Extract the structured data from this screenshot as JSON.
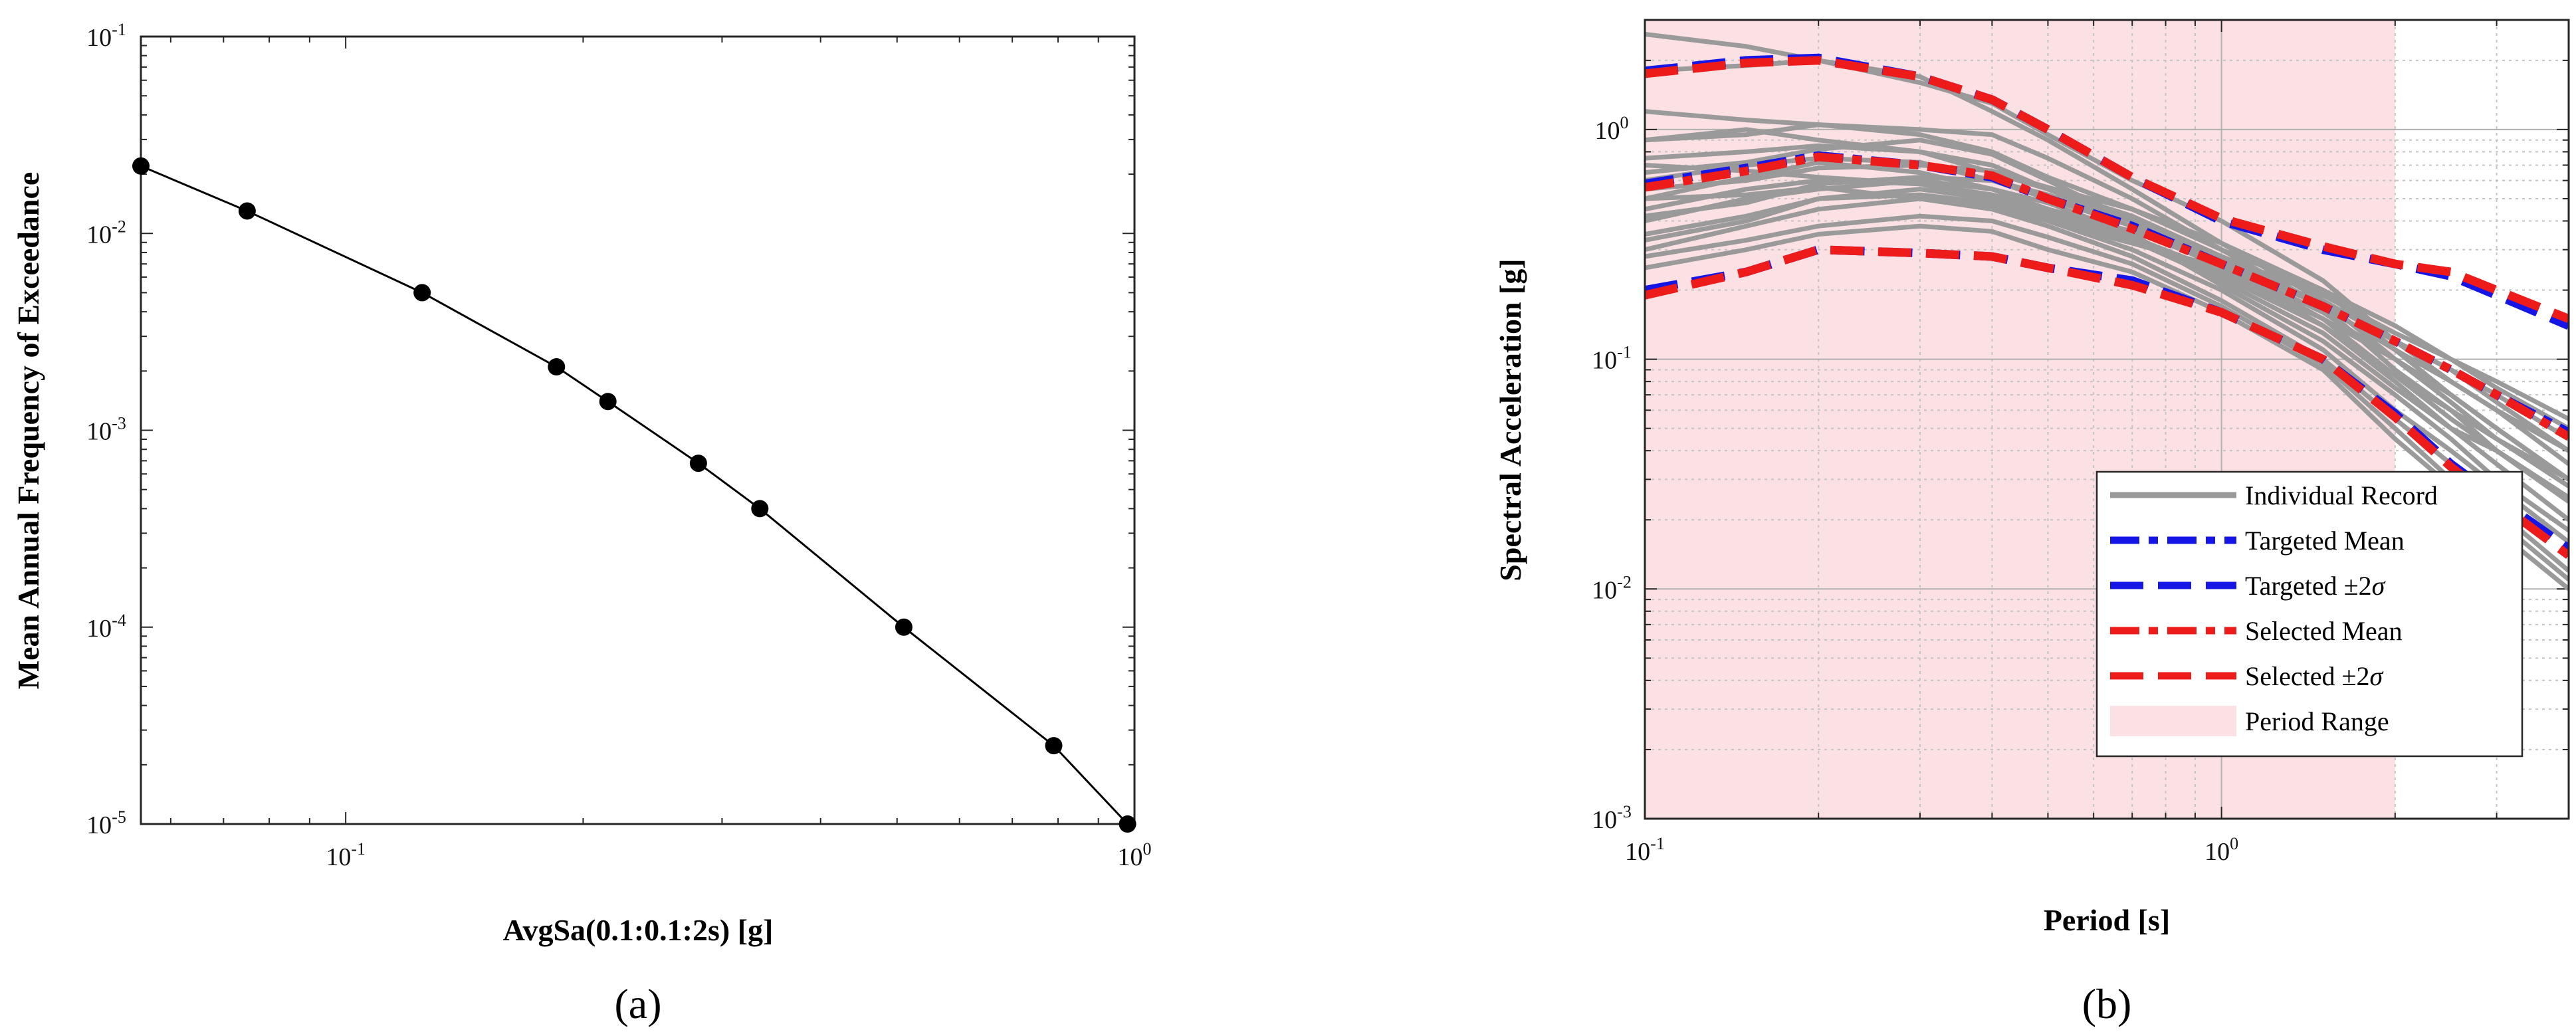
{
  "panel_labels": [
    "(a)",
    "(b)"
  ],
  "colors": {
    "records": "#9a9a9a",
    "targeted": "#1515e6",
    "selected": "#ee1b1b",
    "period_range": "#fbe1e3",
    "hazard": "#000000"
  },
  "chart_data": [
    {
      "type": "line",
      "panel": "(a)",
      "title": "",
      "xlabel": "AvgSa(0.1:0.1:2s) [g]",
      "ylabel": "Mean Annual Frequency of Exceedance",
      "xscale": "log",
      "yscale": "log",
      "xlim": [
        0.055,
        1.0
      ],
      "ylim": [
        1e-05,
        0.1
      ],
      "x_ticks": [
        {
          "base": "10",
          "exp": "-1",
          "value": 0.1
        },
        {
          "base": "10",
          "exp": "0",
          "value": 1
        }
      ],
      "y_ticks": [
        {
          "base": "10",
          "exp": "-5",
          "value": 1e-05
        },
        {
          "base": "10",
          "exp": "-4",
          "value": 0.0001
        },
        {
          "base": "10",
          "exp": "-3",
          "value": 0.001
        },
        {
          "base": "10",
          "exp": "-2",
          "value": 0.01
        },
        {
          "base": "10",
          "exp": "-1",
          "value": 0.1
        }
      ],
      "grid": false,
      "series": [
        {
          "name": "hazard curve",
          "x": [
            0.055,
            0.075,
            0.125,
            0.185,
            0.215,
            0.28,
            0.335,
            0.51,
            0.79,
            0.98
          ],
          "y": [
            0.022,
            0.013,
            0.005,
            0.0021,
            0.0014,
            0.00068,
            0.0004,
            0.0001,
            2.5e-05,
            1e-05
          ]
        }
      ]
    },
    {
      "type": "line",
      "panel": "(b)",
      "title": "",
      "xlabel": "Period [s]",
      "ylabel": "Spectral Acceleration [g]",
      "xscale": "log",
      "yscale": "log",
      "xlim": [
        0.1,
        4.0
      ],
      "ylim": [
        0.001,
        3.0
      ],
      "x_ticks": [
        {
          "base": "10",
          "exp": "-1",
          "value": 0.1
        },
        {
          "base": "10",
          "exp": "0",
          "value": 1
        }
      ],
      "y_ticks": [
        {
          "base": "10",
          "exp": "-3",
          "value": 0.001
        },
        {
          "base": "10",
          "exp": "-2",
          "value": 0.01
        },
        {
          "base": "10",
          "exp": "-1",
          "value": 0.1
        },
        {
          "base": "10",
          "exp": "0",
          "value": 1
        }
      ],
      "grid": true,
      "period_range": [
        0.1,
        2.0
      ],
      "period_grid": [
        0.1,
        0.2,
        0.3,
        0.4,
        0.5,
        0.6,
        0.7,
        0.8,
        0.9,
        1.0,
        2.0,
        3.0,
        4.0
      ],
      "record_periods": [
        0.1,
        0.15,
        0.2,
        0.3,
        0.4,
        0.5,
        0.7,
        1.0,
        1.5,
        2.0,
        2.5,
        3.0,
        4.0
      ],
      "records": [
        [
          2.6,
          2.3,
          2.0,
          1.6,
          1.3,
          0.95,
          0.6,
          0.4,
          0.22,
          0.12,
          0.08,
          0.06,
          0.035
        ],
        [
          1.8,
          1.9,
          2.0,
          1.7,
          1.2,
          0.9,
          0.55,
          0.32,
          0.2,
          0.11,
          0.07,
          0.05,
          0.03
        ],
        [
          1.2,
          1.1,
          1.05,
          1.0,
          0.95,
          0.75,
          0.5,
          0.3,
          0.17,
          0.09,
          0.06,
          0.04,
          0.025
        ],
        [
          0.9,
          0.95,
          1.05,
          0.95,
          0.8,
          0.62,
          0.45,
          0.3,
          0.2,
          0.12,
          0.09,
          0.07,
          0.045
        ],
        [
          0.75,
          0.8,
          0.85,
          0.8,
          0.7,
          0.55,
          0.42,
          0.28,
          0.19,
          0.13,
          0.1,
          0.08,
          0.055
        ],
        [
          0.6,
          0.7,
          0.75,
          0.72,
          0.6,
          0.5,
          0.38,
          0.25,
          0.14,
          0.08,
          0.05,
          0.035,
          0.02
        ],
        [
          0.5,
          0.62,
          0.72,
          0.65,
          0.55,
          0.45,
          0.34,
          0.24,
          0.15,
          0.1,
          0.07,
          0.05,
          0.03
        ],
        [
          0.45,
          0.55,
          0.6,
          0.58,
          0.5,
          0.42,
          0.33,
          0.22,
          0.13,
          0.075,
          0.05,
          0.04,
          0.025
        ],
        [
          0.4,
          0.5,
          0.55,
          0.6,
          0.55,
          0.48,
          0.35,
          0.21,
          0.12,
          0.07,
          0.045,
          0.03,
          0.018
        ],
        [
          0.35,
          0.42,
          0.5,
          0.52,
          0.48,
          0.4,
          0.3,
          0.2,
          0.11,
          0.06,
          0.04,
          0.028,
          0.016
        ],
        [
          0.3,
          0.38,
          0.45,
          0.5,
          0.45,
          0.38,
          0.28,
          0.18,
          0.1,
          0.055,
          0.035,
          0.022,
          0.012
        ],
        [
          0.28,
          0.33,
          0.38,
          0.42,
          0.4,
          0.34,
          0.26,
          0.17,
          0.095,
          0.05,
          0.03,
          0.02,
          0.011
        ],
        [
          0.25,
          0.3,
          0.35,
          0.38,
          0.36,
          0.3,
          0.24,
          0.16,
          0.09,
          0.045,
          0.028,
          0.018,
          0.01
        ],
        [
          0.9,
          1.0,
          0.9,
          0.8,
          0.65,
          0.55,
          0.4,
          0.26,
          0.16,
          0.1,
          0.07,
          0.05,
          0.03
        ],
        [
          0.65,
          0.72,
          0.82,
          0.9,
          0.78,
          0.6,
          0.4,
          0.26,
          0.15,
          0.085,
          0.055,
          0.04,
          0.024
        ],
        [
          0.55,
          0.6,
          0.68,
          0.7,
          0.66,
          0.56,
          0.45,
          0.32,
          0.18,
          0.1,
          0.065,
          0.045,
          0.028
        ],
        [
          0.42,
          0.48,
          0.58,
          0.62,
          0.6,
          0.52,
          0.4,
          0.27,
          0.17,
          0.11,
          0.08,
          0.06,
          0.04
        ],
        [
          0.33,
          0.4,
          0.5,
          0.55,
          0.5,
          0.44,
          0.34,
          0.23,
          0.14,
          0.085,
          0.06,
          0.045,
          0.03
        ],
        [
          0.7,
          0.66,
          0.62,
          0.58,
          0.52,
          0.45,
          0.36,
          0.26,
          0.2,
          0.14,
          0.1,
          0.075,
          0.05
        ],
        [
          0.5,
          0.52,
          0.56,
          0.5,
          0.46,
          0.4,
          0.32,
          0.25,
          0.18,
          0.12,
          0.09,
          0.065,
          0.04
        ]
      ],
      "series": [
        {
          "name": "Targeted Mean",
          "periods": [
            0.1,
            0.15,
            0.2,
            0.3,
            0.4,
            0.5,
            0.7,
            1.0,
            1.5,
            2.0,
            2.5,
            3.0,
            4.0
          ],
          "values": [
            0.58,
            0.68,
            0.77,
            0.7,
            0.62,
            0.5,
            0.38,
            0.26,
            0.17,
            0.12,
            0.09,
            0.07,
            0.048
          ]
        },
        {
          "name": "Targeted +2σ",
          "periods": [
            0.1,
            0.15,
            0.2,
            0.3,
            0.4,
            0.5,
            0.7,
            1.0,
            1.5,
            2.0,
            2.5,
            3.0,
            4.0
          ],
          "values": [
            1.8,
            2.0,
            2.05,
            1.7,
            1.35,
            1.0,
            0.62,
            0.4,
            0.3,
            0.26,
            0.23,
            0.19,
            0.14
          ]
        },
        {
          "name": "Targeted −2σ",
          "periods": [
            0.1,
            0.15,
            0.2,
            0.3,
            0.4,
            0.5,
            0.7,
            1.0,
            1.5,
            2.0,
            2.5,
            3.0,
            4.0
          ],
          "values": [
            0.2,
            0.24,
            0.3,
            0.29,
            0.28,
            0.25,
            0.22,
            0.16,
            0.1,
            0.058,
            0.035,
            0.025,
            0.015
          ]
        },
        {
          "name": "Selected Mean",
          "periods": [
            0.1,
            0.15,
            0.2,
            0.3,
            0.4,
            0.5,
            0.7,
            1.0,
            1.5,
            2.0,
            2.5,
            3.0,
            4.0
          ],
          "values": [
            0.56,
            0.66,
            0.76,
            0.7,
            0.63,
            0.5,
            0.37,
            0.26,
            0.17,
            0.12,
            0.09,
            0.07,
            0.046
          ]
        },
        {
          "name": "Selected +2σ",
          "periods": [
            0.1,
            0.15,
            0.2,
            0.3,
            0.4,
            0.5,
            0.7,
            1.0,
            1.5,
            2.0,
            2.5,
            3.0,
            4.0
          ],
          "values": [
            1.75,
            1.95,
            2.0,
            1.7,
            1.35,
            1.0,
            0.62,
            0.41,
            0.31,
            0.26,
            0.24,
            0.2,
            0.15
          ]
        },
        {
          "name": "Selected −2σ",
          "periods": [
            0.1,
            0.15,
            0.2,
            0.3,
            0.4,
            0.5,
            0.7,
            1.0,
            1.5,
            2.0,
            2.5,
            3.0,
            4.0
          ],
          "values": [
            0.19,
            0.24,
            0.3,
            0.29,
            0.28,
            0.25,
            0.21,
            0.16,
            0.1,
            0.056,
            0.034,
            0.024,
            0.014
          ]
        }
      ],
      "legend": {
        "placement": "bottom-right",
        "entries": [
          {
            "label": "Individual Record",
            "style": "records"
          },
          {
            "label": "Targeted Mean",
            "style": "targeted-mean"
          },
          {
            "label": "Targeted ±2",
            "sigma": "σ",
            "style": "targeted-sigma"
          },
          {
            "label": "Selected Mean",
            "style": "selected-mean"
          },
          {
            "label": "Selected ±2",
            "sigma": "σ",
            "style": "selected-sigma"
          },
          {
            "label": "Period Range",
            "style": "period-range"
          }
        ]
      }
    }
  ]
}
